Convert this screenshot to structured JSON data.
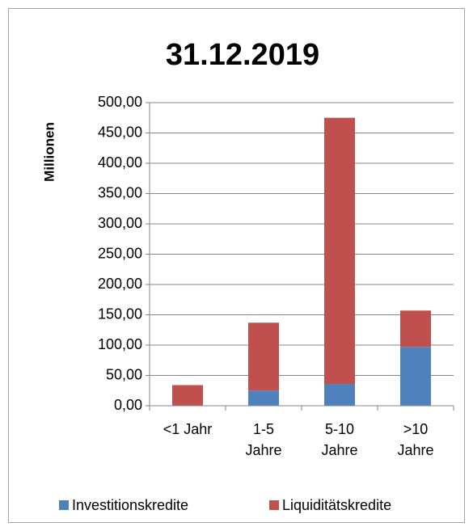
{
  "chart_data": {
    "type": "stacked_bar",
    "title": "31.12.2019",
    "y_label": "Millionen",
    "categories": [
      "<1 Jahr",
      "1-5\nJahre",
      "5-10\nJahre",
      ">10\nJahre"
    ],
    "series": [
      {
        "name": "Investitionskredite",
        "color": "#4f81bd",
        "values": [
          0,
          25,
          36,
          97
        ]
      },
      {
        "name": "Liquiditätskredite",
        "color": "#c0504d",
        "values": [
          34,
          112,
          439,
          60
        ]
      }
    ],
    "ylim": [
      0,
      500
    ],
    "yticks": [
      {
        "value": 0,
        "label": "0,00"
      },
      {
        "value": 50,
        "label": "50,00"
      },
      {
        "value": 100,
        "label": "100,00"
      },
      {
        "value": 150,
        "label": "150,00"
      },
      {
        "value": 200,
        "label": "200,00"
      },
      {
        "value": 250,
        "label": "250,00"
      },
      {
        "value": 300,
        "label": "300,00"
      },
      {
        "value": 350,
        "label": "350,00"
      },
      {
        "value": 400,
        "label": "400,00"
      },
      {
        "value": 450,
        "label": "450,00"
      },
      {
        "value": 500,
        "label": "500,00"
      }
    ],
    "grid": true,
    "legend": "bottom"
  }
}
